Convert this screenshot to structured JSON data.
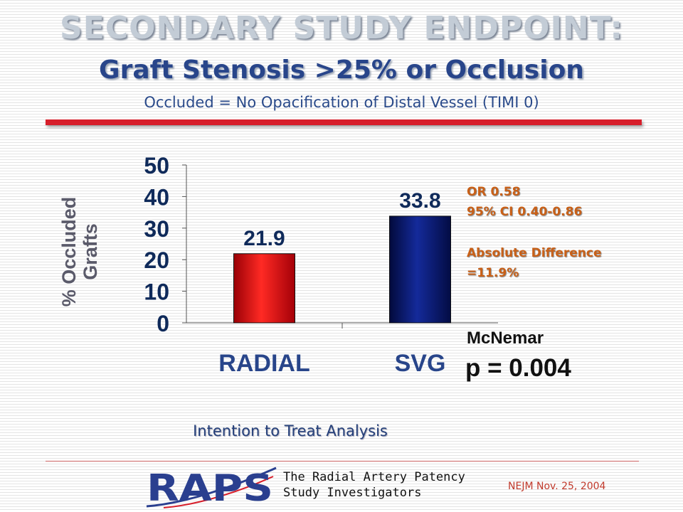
{
  "header": {
    "title": "SECONDARY STUDY ENDPOINT:",
    "subtitle": "Graft Stenosis >25% or Occlusion",
    "caption": "Occluded = No Opacification of Distal Vessel (TIMI 0)"
  },
  "chart_data": {
    "type": "bar",
    "categories": [
      "RADIAL",
      "SVG"
    ],
    "values": [
      21.9,
      33.8
    ],
    "data_labels": [
      "21.9",
      "33.8"
    ],
    "bar_colors": [
      "#e8121a",
      "#0a1a6e"
    ],
    "title": "",
    "xlabel": "",
    "ylabel": "% Occluded Grafts",
    "ylabel_lines": [
      "% Occluded",
      "Grafts"
    ],
    "ylim": [
      0,
      50
    ],
    "yticks": [
      0,
      10,
      20,
      30,
      40,
      50
    ],
    "grid": false,
    "legend": "none"
  },
  "stats": {
    "odds_ratio": "OR 0.58",
    "confidence_interval": "95% CI 0.40-0.86",
    "difference_label": "Absolute Difference",
    "difference_value": "=11.9%",
    "test_name": "McNemar",
    "p_value": "p = 0.004"
  },
  "analysis_note": "Intention to Treat Analysis",
  "footer": {
    "logo_text": "RAPS",
    "investigators_line1": "The Radial Artery Patency",
    "investigators_line2": "Study Investigators",
    "citation": "NEJM Nov. 25, 2004"
  },
  "colors": {
    "accent_red": "#d71f2b",
    "navy": "#28458a",
    "stats_orange": "#c86018",
    "logo_blue": "#2a3f8f"
  }
}
